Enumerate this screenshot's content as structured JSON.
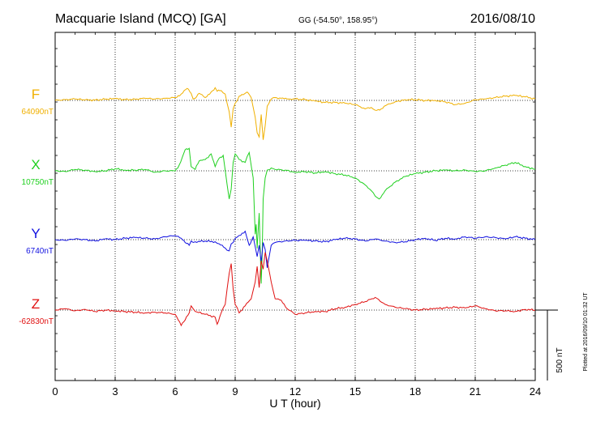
{
  "header": {
    "station": "Macquarie Island (MCQ)  [GA]",
    "coords": "GG (-54.50°, 158.95°)",
    "date": "2016/08/10"
  },
  "footer": {
    "plotted": "Plotted at 2016/09/10 01:32 UT",
    "scale_label": "500 nT"
  },
  "chart_data": {
    "type": "line",
    "title": "Macquarie Island (MCQ)  [GA]",
    "xlabel": "U T (hour)",
    "ylabel": "",
    "xlim": [
      0,
      24
    ],
    "x_ticks": [
      "0",
      "3",
      "6",
      "9",
      "12",
      "15",
      "18",
      "21",
      "24"
    ],
    "grid": true,
    "scale_nT": 500,
    "series": [
      {
        "name": "F",
        "baseline_label": "64090nT",
        "color": "#f0b000",
        "x": [
          0,
          0.5,
          1,
          1.5,
          2,
          2.5,
          3,
          3.5,
          4,
          4.5,
          5,
          5.5,
          6,
          6.3,
          6.6,
          6.8,
          6.9,
          7.0,
          7.2,
          7.5,
          7.8,
          8.0,
          8.1,
          8.3,
          8.5,
          8.7,
          8.8,
          8.9,
          9.0,
          9.2,
          9.4,
          9.6,
          9.8,
          10.0,
          10.1,
          10.2,
          10.3,
          10.4,
          10.5,
          10.6,
          10.8,
          11.0,
          11.3,
          11.6,
          12,
          12.5,
          13,
          13.5,
          14,
          14.5,
          15,
          15.5,
          15.8,
          16,
          16.3,
          16.6,
          17,
          17.5,
          18,
          18.5,
          19,
          19.5,
          20,
          20.5,
          21,
          21.5,
          22,
          22.5,
          23,
          23.5,
          24
        ],
        "values": [
          0,
          5,
          10,
          3,
          2,
          8,
          12,
          5,
          8,
          15,
          10,
          15,
          20,
          45,
          85,
          50,
          10,
          15,
          50,
          20,
          60,
          90,
          65,
          70,
          45,
          -80,
          -190,
          -60,
          -20,
          30,
          40,
          60,
          20,
          -120,
          -230,
          -260,
          -100,
          -280,
          -180,
          -40,
          10,
          20,
          15,
          10,
          10,
          5,
          -5,
          -15,
          -15,
          -20,
          -30,
          -60,
          -50,
          -70,
          -60,
          -30,
          -10,
          5,
          5,
          0,
          0,
          -10,
          -30,
          -20,
          5,
          10,
          20,
          30,
          35,
          25,
          10
        ]
      },
      {
        "name": "X",
        "baseline_label": "10750nT",
        "color": "#20d020",
        "x": [
          0,
          0.5,
          1,
          1.5,
          2,
          2.5,
          3,
          3.5,
          4,
          4.5,
          5,
          5.5,
          6,
          6.2,
          6.5,
          6.7,
          6.8,
          6.9,
          7.0,
          7.2,
          7.5,
          7.8,
          8.0,
          8.2,
          8.4,
          8.6,
          8.7,
          8.8,
          8.9,
          9.0,
          9.2,
          9.5,
          9.7,
          9.9,
          10.0,
          10.05,
          10.1,
          10.2,
          10.3,
          10.35,
          10.4,
          10.5,
          10.6,
          10.8,
          11.0,
          11.5,
          12,
          12.5,
          13,
          13.5,
          14,
          14.5,
          15,
          15.5,
          15.8,
          16,
          16.2,
          16.5,
          17,
          17.5,
          18,
          18.5,
          19,
          19.5,
          20,
          20.5,
          21,
          21.5,
          22,
          22.5,
          23,
          23.5,
          24
        ],
        "values": [
          0,
          -5,
          10,
          5,
          -5,
          0,
          15,
          5,
          5,
          10,
          -10,
          0,
          0,
          40,
          150,
          160,
          30,
          20,
          10,
          70,
          80,
          120,
          30,
          90,
          110,
          -100,
          -200,
          -130,
          60,
          120,
          80,
          60,
          130,
          -50,
          -450,
          -380,
          -550,
          -300,
          -800,
          -600,
          -200,
          -50,
          5,
          20,
          10,
          5,
          -10,
          -5,
          -15,
          -5,
          -20,
          -30,
          -50,
          -100,
          -140,
          -180,
          -200,
          -140,
          -80,
          -40,
          -20,
          -10,
          0,
          5,
          0,
          5,
          -5,
          0,
          20,
          40,
          60,
          30,
          10
        ]
      },
      {
        "name": "Y",
        "baseline_label": "6740nT",
        "color": "#1010e0",
        "x": [
          0,
          0.5,
          1,
          1.5,
          2,
          2.5,
          3,
          3.5,
          4,
          4.5,
          5,
          5.5,
          6,
          6.3,
          6.5,
          6.7,
          6.8,
          6.9,
          7.0,
          7.5,
          8.0,
          8.2,
          8.5,
          8.7,
          8.8,
          8.9,
          9.0,
          9.2,
          9.5,
          9.7,
          9.9,
          10.0,
          10.1,
          10.2,
          10.3,
          10.4,
          10.5,
          10.6,
          10.7,
          10.8,
          11.0,
          11.5,
          12,
          12.5,
          13,
          13.5,
          14,
          14.5,
          15,
          15.5,
          16,
          16.5,
          17,
          17.5,
          18,
          18.5,
          19,
          19.5,
          20,
          20.5,
          21,
          21.5,
          22,
          22.5,
          23,
          23.5,
          24
        ],
        "values": [
          0,
          -5,
          5,
          0,
          -10,
          5,
          0,
          10,
          15,
          10,
          5,
          20,
          30,
          10,
          -20,
          -40,
          -10,
          -20,
          -15,
          -10,
          -15,
          -30,
          -60,
          -80,
          -30,
          -20,
          10,
          30,
          60,
          -40,
          20,
          -50,
          -120,
          -40,
          -160,
          -20,
          -70,
          -200,
          -120,
          -40,
          -20,
          -10,
          -5,
          -5,
          -10,
          -15,
          0,
          10,
          5,
          -10,
          5,
          -10,
          -20,
          -15,
          0,
          10,
          -5,
          10,
          5,
          20,
          10,
          20,
          15,
          5,
          20,
          10,
          0
        ]
      },
      {
        "name": "Z",
        "baseline_label": "-62830nT",
        "color": "#e01010",
        "x": [
          0,
          0.5,
          1,
          1.5,
          2,
          2.5,
          3,
          3.5,
          4,
          4.5,
          5,
          5.5,
          6,
          6.3,
          6.5,
          6.7,
          6.8,
          6.9,
          7.0,
          7.5,
          8.0,
          8.1,
          8.3,
          8.5,
          8.7,
          8.8,
          8.9,
          9.0,
          9.2,
          9.5,
          9.8,
          10.0,
          10.1,
          10.2,
          10.3,
          10.4,
          10.5,
          10.6,
          10.8,
          11.0,
          11.3,
          11.6,
          12,
          12.5,
          13,
          13.5,
          14,
          14.5,
          15,
          15.5,
          16,
          16.5,
          17,
          17.5,
          18,
          18.5,
          19,
          19.5,
          20,
          20.5,
          21,
          21.5,
          22,
          22.5,
          23,
          23.5,
          24
        ],
        "values": [
          0,
          10,
          -5,
          5,
          -10,
          0,
          -5,
          -10,
          -15,
          -20,
          -15,
          -20,
          -30,
          -110,
          -70,
          -20,
          30,
          10,
          -10,
          -30,
          -50,
          -100,
          -20,
          40,
          260,
          330,
          150,
          40,
          -20,
          30,
          80,
          200,
          310,
          160,
          350,
          290,
          410,
          350,
          200,
          80,
          70,
          10,
          -30,
          -20,
          -10,
          -10,
          10,
          20,
          40,
          60,
          90,
          40,
          20,
          10,
          0,
          5,
          10,
          15,
          20,
          15,
          30,
          10,
          -5,
          -5,
          -10,
          5,
          0
        ]
      }
    ]
  }
}
